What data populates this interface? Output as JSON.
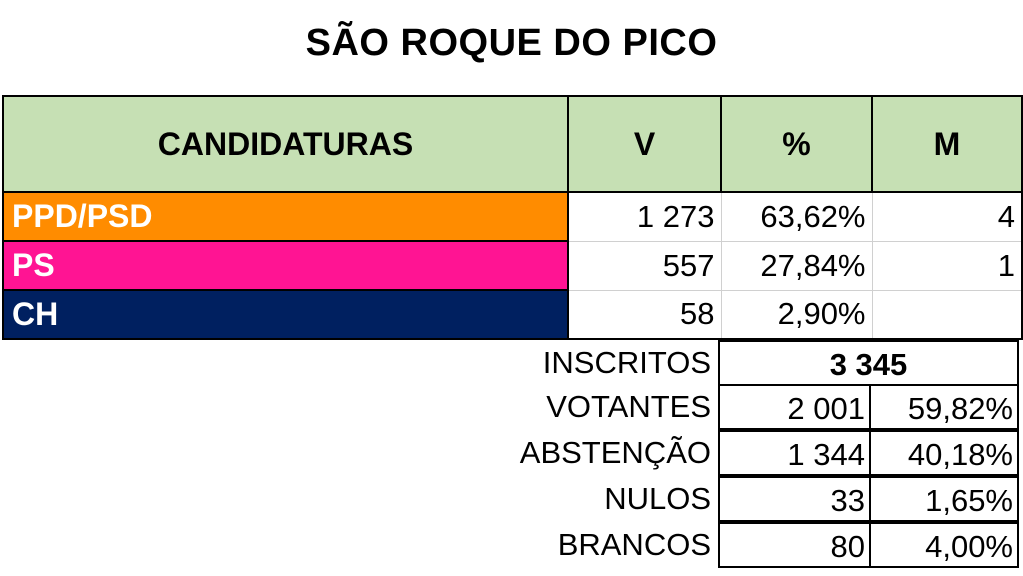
{
  "title": "SÃO ROQUE DO PICO",
  "headers": {
    "party": "CANDIDATURAS",
    "votes": "V",
    "pct": "%",
    "mandates": "M"
  },
  "rows": [
    {
      "party": "PPD/PSD",
      "votes": "1 273",
      "pct": "63,62%",
      "mandates": "4",
      "color": "#ff8c00"
    },
    {
      "party": "PS",
      "votes": "557",
      "pct": "27,84%",
      "mandates": "1",
      "color": "#ff1493"
    },
    {
      "party": "CH",
      "votes": "58",
      "pct": "2,90%",
      "mandates": "",
      "color": "#002060"
    }
  ],
  "summary": {
    "inscritos": {
      "label": "INSCRITOS",
      "value": "3 345"
    },
    "votantes": {
      "label": "VOTANTES",
      "value": "2 001",
      "pct": "59,82%"
    },
    "abstencao": {
      "label": "ABSTENÇÃO",
      "value": "1 344",
      "pct": "40,18%"
    },
    "nulos": {
      "label": "NULOS",
      "value": "33",
      "pct": "1,65%"
    },
    "brancos": {
      "label": "BRANCOS",
      "value": "80",
      "pct": "4,00%"
    }
  },
  "header_color": "#c6e0b4"
}
